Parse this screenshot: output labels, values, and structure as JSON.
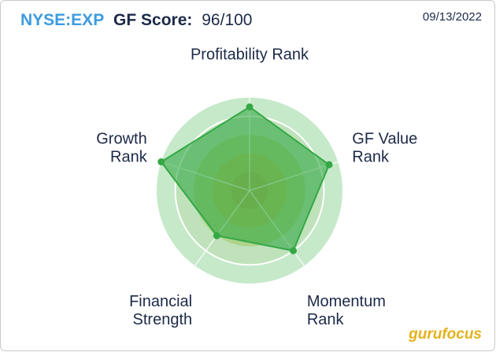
{
  "chart_data": {
    "type": "radar",
    "ticker": "NYSE:EXP",
    "score_label": "GF Score:",
    "score": "96/100",
    "date": "09/13/2022",
    "source": "gurufocus",
    "categories": [
      [
        "Profitability Rank"
      ],
      [
        "GF Value",
        "Rank"
      ],
      [
        "Momentum",
        "Rank"
      ],
      [
        "Financial",
        "Strength"
      ],
      [
        "Growth",
        "Rank"
      ]
    ],
    "values": [
      9,
      9,
      8,
      6,
      10
    ],
    "color": "#34a844",
    "ylim": [
      0,
      10
    ],
    "yticks": [
      2,
      4,
      6,
      8,
      10
    ]
  }
}
